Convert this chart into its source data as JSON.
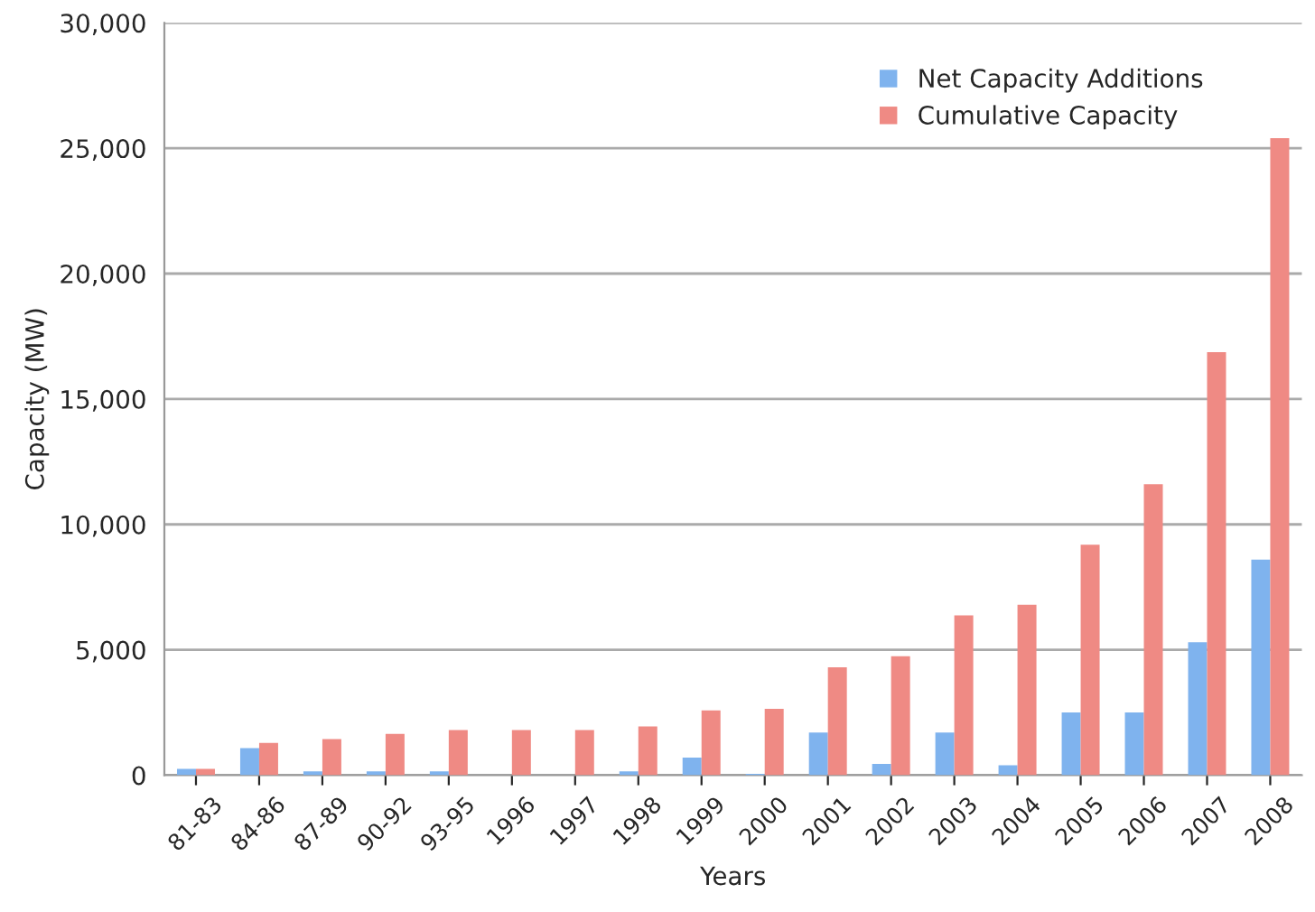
{
  "chart_data": {
    "type": "bar",
    "xlabel": "Years",
    "ylabel": "Capacity (MW)",
    "categories": [
      "81-83",
      "84-86",
      "87-89",
      "90-92",
      "93-95",
      "1996",
      "1997",
      "1998",
      "1999",
      "2000",
      "2001",
      "2002",
      "2003",
      "2004",
      "2005",
      "2006",
      "2007",
      "2008"
    ],
    "series": [
      {
        "name": "Net Capacity Additions",
        "color": "#7fb3ee",
        "values": [
          250,
          1080,
          150,
          150,
          150,
          null,
          null,
          150,
          700,
          50,
          1700,
          450,
          1700,
          400,
          2500,
          2500,
          5300,
          8600
        ]
      },
      {
        "name": "Cumulative Capacity",
        "color": "#ef8a84",
        "values": [
          250,
          1290,
          1440,
          1650,
          1800,
          1800,
          1800,
          1940,
          2580,
          2650,
          4300,
          4740,
          6370,
          6800,
          9190,
          11600,
          16870,
          25400
        ]
      }
    ],
    "ylim": [
      0,
      30000
    ],
    "yticks": [
      {
        "value": 0,
        "label": "0"
      },
      {
        "value": 5000,
        "label": "5,000"
      },
      {
        "value": 10000,
        "label": "10,000"
      },
      {
        "value": 15000,
        "label": "15,000"
      },
      {
        "value": 20000,
        "label": "20,000"
      },
      {
        "value": 25000,
        "label": "25,000"
      },
      {
        "value": 30000,
        "label": "30,000"
      }
    ],
    "grid": "y",
    "legend": "top right"
  }
}
